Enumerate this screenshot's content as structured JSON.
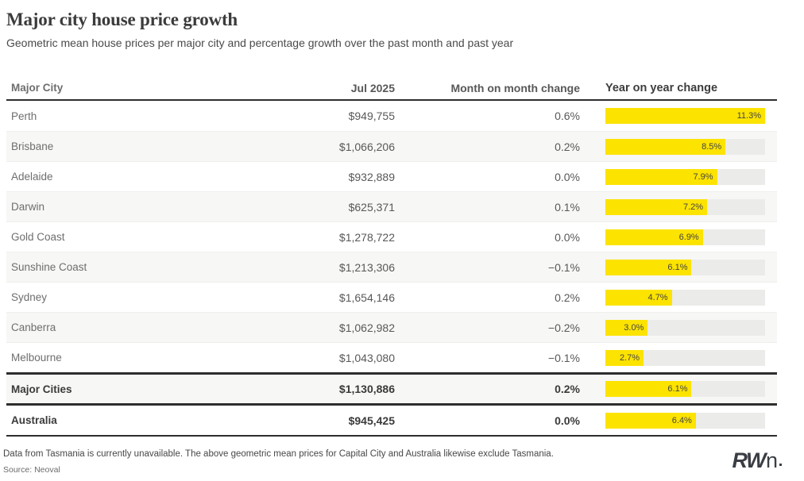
{
  "page": {
    "title": "Major city house price growth",
    "subtitle": "Geometric mean house prices per major city and percentage growth over the past month and past year"
  },
  "chart_data": {
    "type": "table",
    "title": "Major city house price growth",
    "subtitle": "Geometric mean house prices per major city and percentage growth over the past month and past year",
    "columns": [
      "Major City",
      "Jul 2025",
      "Month on month change",
      "Year on year change"
    ],
    "yoy_bar": {
      "type": "bar",
      "axis_max": 11.3,
      "orientation": "horizontal"
    },
    "rows": [
      {
        "city": "Perth",
        "jul_2025": "$949,755",
        "mom_change": "0.6%",
        "yoy_change_pct": 11.3,
        "yoy_label": "11.3%",
        "striped": false,
        "emphasis": false
      },
      {
        "city": "Brisbane",
        "jul_2025": "$1,066,206",
        "mom_change": "0.2%",
        "yoy_change_pct": 8.5,
        "yoy_label": "8.5%",
        "striped": true,
        "emphasis": false
      },
      {
        "city": "Adelaide",
        "jul_2025": "$932,889",
        "mom_change": "0.0%",
        "yoy_change_pct": 7.9,
        "yoy_label": "7.9%",
        "striped": false,
        "emphasis": false
      },
      {
        "city": "Darwin",
        "jul_2025": "$625,371",
        "mom_change": "0.1%",
        "yoy_change_pct": 7.2,
        "yoy_label": "7.2%",
        "striped": true,
        "emphasis": false
      },
      {
        "city": "Gold Coast",
        "jul_2025": "$1,278,722",
        "mom_change": "0.0%",
        "yoy_change_pct": 6.9,
        "yoy_label": "6.9%",
        "striped": false,
        "emphasis": false
      },
      {
        "city": "Sunshine Coast",
        "jul_2025": "$1,213,306",
        "mom_change": "−0.1%",
        "yoy_change_pct": 6.1,
        "yoy_label": "6.1%",
        "striped": true,
        "emphasis": false
      },
      {
        "city": "Sydney",
        "jul_2025": "$1,654,146",
        "mom_change": "0.2%",
        "yoy_change_pct": 4.7,
        "yoy_label": "4.7%",
        "striped": false,
        "emphasis": false
      },
      {
        "city": "Canberra",
        "jul_2025": "$1,062,982",
        "mom_change": "−0.2%",
        "yoy_change_pct": 3.0,
        "yoy_label": "3.0%",
        "striped": true,
        "emphasis": false
      },
      {
        "city": "Melbourne",
        "jul_2025": "$1,043,080",
        "mom_change": "−0.1%",
        "yoy_change_pct": 2.7,
        "yoy_label": "2.7%",
        "striped": false,
        "emphasis": false
      },
      {
        "city": "Major Cities",
        "jul_2025": "$1,130,886",
        "mom_change": "0.2%",
        "yoy_change_pct": 6.1,
        "yoy_label": "6.1%",
        "striped": true,
        "emphasis": true,
        "section": "summary"
      },
      {
        "city": "Australia",
        "jul_2025": "$945,425",
        "mom_change": "0.0%",
        "yoy_change_pct": 6.4,
        "yoy_label": "6.4%",
        "striped": false,
        "emphasis": true,
        "section": "total"
      }
    ]
  },
  "footer": {
    "note": "Data from Tasmania is currently unavailable. The above geometric mean prices for Capital City and Australia likewise exclude Tasmania.",
    "source": "Source: Neoval",
    "logo_rw": "RW",
    "logo_n": "n"
  },
  "colors": {
    "bar_fill": "#fce300",
    "bar_track": "#ebebe9",
    "row_stripe": "#f7f7f5",
    "rule_dark": "#2e2e2e"
  }
}
